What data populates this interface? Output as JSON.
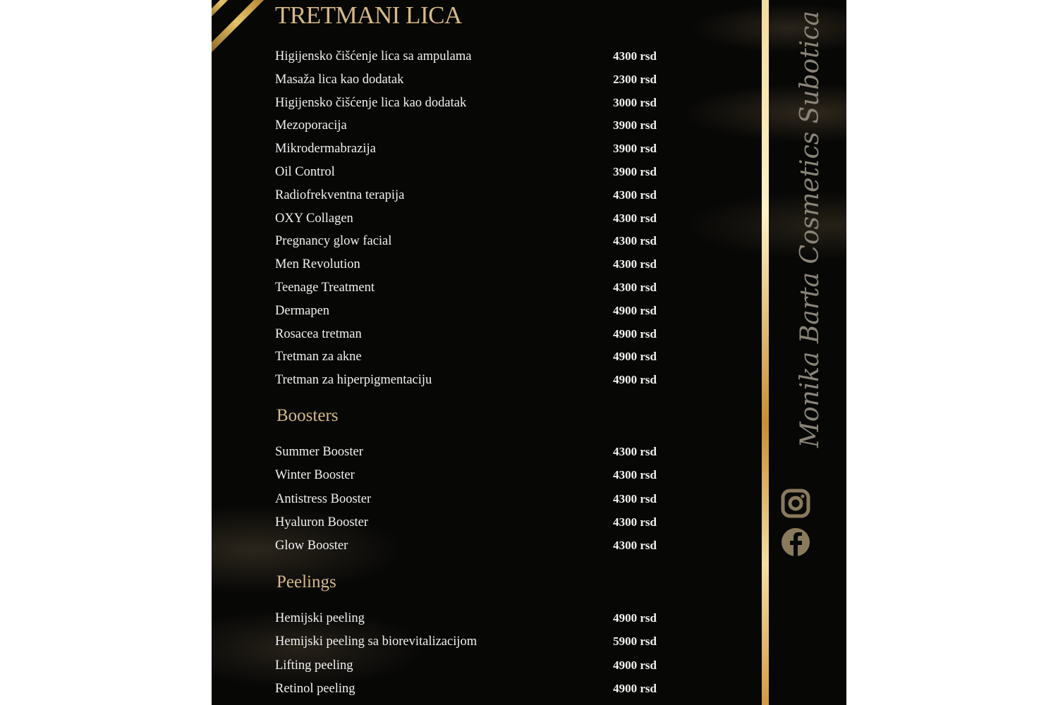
{
  "title": "TRETMANI LICA",
  "sections": [
    {
      "heading": "",
      "items": [
        {
          "name": "Higijensko čišćenje lica sa ampulama",
          "price": "4300 rsd"
        },
        {
          "name": "Masaža lica kao dodatak",
          "price": "2300 rsd"
        },
        {
          "name": "Higijensko čišćenje lica kao dodatak",
          "price": "3000 rsd"
        },
        {
          "name": "Mezoporacija",
          "price": "3900 rsd"
        },
        {
          "name": "Mikrodermabrazija",
          "price": "3900 rsd"
        },
        {
          "name": "Oil Control",
          "price": "3900 rsd"
        },
        {
          "name": "Radiofrekventna terapija",
          "price": "4300 rsd"
        },
        {
          "name": "OXY Collagen",
          "price": "4300 rsd"
        },
        {
          "name": "Pregnancy glow facial",
          "price": "4300 rsd"
        },
        {
          "name": "Men Revolution",
          "price": "4300 rsd"
        },
        {
          "name": "Teenage Treatment",
          "price": "4300 rsd"
        },
        {
          "name": "Dermapen",
          "price": "4900 rsd"
        },
        {
          "name": "Rosacea tretman",
          "price": "4900 rsd"
        },
        {
          "name": "Tretman za akne",
          "price": "4900 rsd"
        },
        {
          "name": "Tretman za hiperpigmentaciju",
          "price": "4900 rsd"
        }
      ]
    },
    {
      "heading": "Boosters",
      "items": [
        {
          "name": "Summer Booster",
          "price": "4300 rsd"
        },
        {
          "name": "Winter Booster",
          "price": "4300 rsd"
        },
        {
          "name": "Antistress Booster",
          "price": "4300 rsd"
        },
        {
          "name": "Hyaluron Booster",
          "price": "4300 rsd"
        },
        {
          "name": "Glow Booster",
          "price": "4300 rsd"
        }
      ]
    },
    {
      "heading": "Peelings",
      "items": [
        {
          "name": "Hemijski peeling",
          "price": "4900 rsd"
        },
        {
          "name": "Hemijski peeling sa biorevitalizacijom",
          "price": "5900 rsd"
        },
        {
          "name": "Lifting peeling",
          "price": "4900 rsd"
        },
        {
          "name": "Retinol peeling",
          "price": "4900 rsd"
        }
      ]
    }
  ],
  "brand": "Monika Barta Cosmetics Subotica",
  "icons": [
    "instagram-icon",
    "facebook-icon"
  ],
  "colors": {
    "gold": "#d6b987",
    "background": "#070706",
    "text": "#f2f2f2"
  }
}
